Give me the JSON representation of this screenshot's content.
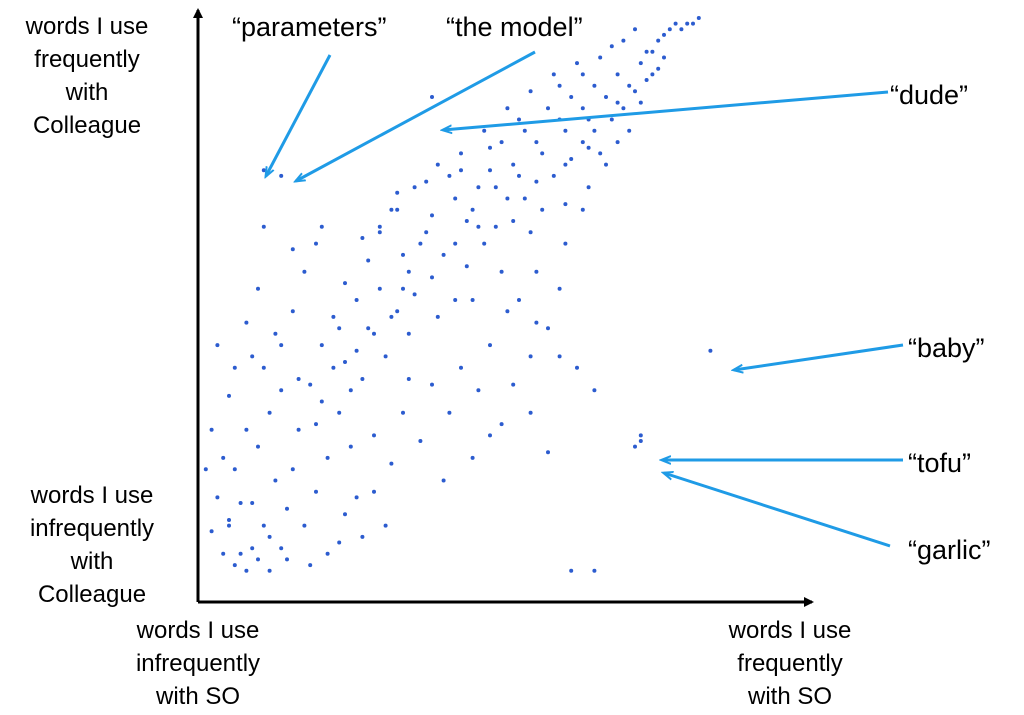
{
  "chart_data": {
    "type": "scatter",
    "title": "",
    "axes": {
      "y_high_label": "words I use\nfrequently\nwith\nColleague",
      "y_low_label": "words I use\ninfrequently\nwith\nColleague",
      "x_low_label": "words I use\ninfrequently\nwith SO",
      "x_high_label": "words I use\nfrequently\nwith SO"
    },
    "xlim": [
      0,
      1
    ],
    "ylim": [
      0,
      1
    ],
    "grid": false,
    "point_color": "#2c5ccf",
    "arrow_color": "#1f9be6",
    "annotations": [
      {
        "text": "“parameters”",
        "x": 0.11,
        "y": 0.73
      },
      {
        "text": "“the model”",
        "x": 0.14,
        "y": 0.72
      },
      {
        "text": "“dude”",
        "x": 0.4,
        "y": 0.86
      },
      {
        "text": "“baby”",
        "x": 0.88,
        "y": 0.41
      },
      {
        "text": "“tofu”",
        "x": 0.76,
        "y": 0.26
      },
      {
        "text": "“garlic”",
        "x": 0.76,
        "y": 0.24
      }
    ],
    "series": [
      {
        "points": [
          [
            0.11,
            0.73
          ],
          [
            0.14,
            0.72
          ],
          [
            0.4,
            0.86
          ],
          [
            0.88,
            0.41
          ],
          [
            0.76,
            0.26
          ],
          [
            0.75,
            0.24
          ],
          [
            0.76,
            0.25
          ],
          [
            0.34,
            0.69
          ],
          [
            0.11,
            0.63
          ],
          [
            0.21,
            0.63
          ],
          [
            0.16,
            0.59
          ],
          [
            0.31,
            0.63
          ],
          [
            0.05,
            0.11
          ],
          [
            0.07,
            0.05
          ],
          [
            0.1,
            0.04
          ],
          [
            0.04,
            0.22
          ],
          [
            0.02,
            0.09
          ],
          [
            0.09,
            0.14
          ],
          [
            0.06,
            0.2
          ],
          [
            0.12,
            0.08
          ],
          [
            0.03,
            0.15
          ],
          [
            0.08,
            0.27
          ],
          [
            0.05,
            0.33
          ],
          [
            0.11,
            0.1
          ],
          [
            0.13,
            0.18
          ],
          [
            0.02,
            0.27
          ],
          [
            0.15,
            0.13
          ],
          [
            0.04,
            0.05
          ],
          [
            0.07,
            0.14
          ],
          [
            0.1,
            0.24
          ],
          [
            0.14,
            0.06
          ],
          [
            0.01,
            0.2
          ],
          [
            0.06,
            0.38
          ],
          [
            0.12,
            0.3
          ],
          [
            0.16,
            0.2
          ],
          [
            0.09,
            0.06
          ],
          [
            0.03,
            0.42
          ],
          [
            0.18,
            0.1
          ],
          [
            0.11,
            0.38
          ],
          [
            0.08,
            0.46
          ],
          [
            0.05,
            0.1
          ],
          [
            0.14,
            0.34
          ],
          [
            0.17,
            0.27
          ],
          [
            0.2,
            0.16
          ],
          [
            0.13,
            0.44
          ],
          [
            0.22,
            0.22
          ],
          [
            0.1,
            0.52
          ],
          [
            0.19,
            0.35
          ],
          [
            0.24,
            0.3
          ],
          [
            0.16,
            0.48
          ],
          [
            0.21,
            0.42
          ],
          [
            0.26,
            0.24
          ],
          [
            0.18,
            0.55
          ],
          [
            0.23,
            0.47
          ],
          [
            0.28,
            0.36
          ],
          [
            0.25,
            0.53
          ],
          [
            0.3,
            0.44
          ],
          [
            0.2,
            0.6
          ],
          [
            0.27,
            0.5
          ],
          [
            0.32,
            0.4
          ],
          [
            0.29,
            0.57
          ],
          [
            0.34,
            0.48
          ],
          [
            0.31,
            0.62
          ],
          [
            0.36,
            0.55
          ],
          [
            0.33,
            0.66
          ],
          [
            0.38,
            0.6
          ],
          [
            0.35,
            0.52
          ],
          [
            0.4,
            0.65
          ],
          [
            0.37,
            0.7
          ],
          [
            0.42,
            0.58
          ],
          [
            0.39,
            0.62
          ],
          [
            0.44,
            0.68
          ],
          [
            0.41,
            0.74
          ],
          [
            0.46,
            0.64
          ],
          [
            0.43,
            0.72
          ],
          [
            0.48,
            0.7
          ],
          [
            0.45,
            0.76
          ],
          [
            0.5,
            0.73
          ],
          [
            0.47,
            0.66
          ],
          [
            0.52,
            0.78
          ],
          [
            0.49,
            0.8
          ],
          [
            0.54,
            0.74
          ],
          [
            0.51,
            0.7
          ],
          [
            0.56,
            0.8
          ],
          [
            0.53,
            0.84
          ],
          [
            0.58,
            0.78
          ],
          [
            0.55,
            0.72
          ],
          [
            0.6,
            0.84
          ],
          [
            0.57,
            0.87
          ],
          [
            0.62,
            0.82
          ],
          [
            0.59,
            0.76
          ],
          [
            0.64,
            0.86
          ],
          [
            0.61,
            0.9
          ],
          [
            0.66,
            0.84
          ],
          [
            0.63,
            0.8
          ],
          [
            0.68,
            0.88
          ],
          [
            0.65,
            0.92
          ],
          [
            0.7,
            0.86
          ],
          [
            0.67,
            0.82
          ],
          [
            0.72,
            0.9
          ],
          [
            0.69,
            0.93
          ],
          [
            0.74,
            0.88
          ],
          [
            0.71,
            0.95
          ],
          [
            0.76,
            0.92
          ],
          [
            0.73,
            0.96
          ],
          [
            0.78,
            0.94
          ],
          [
            0.75,
            0.98
          ],
          [
            0.8,
            0.97
          ],
          [
            0.77,
            0.94
          ],
          [
            0.82,
            0.99
          ],
          [
            0.79,
            0.96
          ],
          [
            0.81,
            0.98
          ],
          [
            0.83,
            0.98
          ],
          [
            0.84,
            0.99
          ],
          [
            0.85,
            0.99
          ],
          [
            0.86,
            1.0
          ],
          [
            0.35,
            0.3
          ],
          [
            0.4,
            0.35
          ],
          [
            0.45,
            0.38
          ],
          [
            0.5,
            0.42
          ],
          [
            0.38,
            0.25
          ],
          [
            0.43,
            0.3
          ],
          [
            0.48,
            0.34
          ],
          [
            0.53,
            0.48
          ],
          [
            0.42,
            0.18
          ],
          [
            0.47,
            0.22
          ],
          [
            0.55,
            0.5
          ],
          [
            0.58,
            0.55
          ],
          [
            0.6,
            0.45
          ],
          [
            0.63,
            0.6
          ],
          [
            0.66,
            0.66
          ],
          [
            0.7,
            0.74
          ],
          [
            0.52,
            0.28
          ],
          [
            0.57,
            0.4
          ],
          [
            0.62,
            0.52
          ],
          [
            0.67,
            0.7
          ],
          [
            0.72,
            0.78
          ],
          [
            0.3,
            0.16
          ],
          [
            0.33,
            0.21
          ],
          [
            0.36,
            0.36
          ],
          [
            0.25,
            0.12
          ],
          [
            0.28,
            0.08
          ],
          [
            0.22,
            0.05
          ],
          [
            0.27,
            0.15
          ],
          [
            0.32,
            0.1
          ],
          [
            0.3,
            0.26
          ],
          [
            0.26,
            0.34
          ],
          [
            0.23,
            0.38
          ],
          [
            0.44,
            0.5
          ],
          [
            0.46,
            0.56
          ],
          [
            0.49,
            0.6
          ],
          [
            0.51,
            0.63
          ],
          [
            0.54,
            0.64
          ],
          [
            0.56,
            0.68
          ],
          [
            0.59,
            0.66
          ],
          [
            0.61,
            0.72
          ],
          [
            0.64,
            0.75
          ],
          [
            0.66,
            0.78
          ],
          [
            0.68,
            0.8
          ],
          [
            0.71,
            0.82
          ],
          [
            0.73,
            0.84
          ],
          [
            0.75,
            0.87
          ],
          [
            0.77,
            0.89
          ],
          [
            0.79,
            0.91
          ],
          [
            0.62,
            0.4
          ],
          [
            0.65,
            0.38
          ],
          [
            0.68,
            0.34
          ],
          [
            0.57,
            0.3
          ],
          [
            0.6,
            0.23
          ],
          [
            0.58,
            0.46
          ],
          [
            0.54,
            0.35
          ],
          [
            0.5,
            0.26
          ],
          [
            0.64,
            0.02
          ],
          [
            0.68,
            0.02
          ],
          [
            0.24,
            0.07
          ],
          [
            0.19,
            0.03
          ],
          [
            0.15,
            0.04
          ],
          [
            0.12,
            0.02
          ],
          [
            0.08,
            0.02
          ],
          [
            0.06,
            0.03
          ],
          [
            0.28,
            0.61
          ],
          [
            0.34,
            0.66
          ],
          [
            0.39,
            0.71
          ],
          [
            0.45,
            0.73
          ],
          [
            0.5,
            0.77
          ],
          [
            0.55,
            0.82
          ],
          [
            0.62,
            0.88
          ],
          [
            0.66,
            0.9
          ],
          [
            0.36,
            0.44
          ],
          [
            0.41,
            0.47
          ],
          [
            0.47,
            0.5
          ],
          [
            0.52,
            0.55
          ],
          [
            0.57,
            0.62
          ],
          [
            0.63,
            0.67
          ],
          [
            0.69,
            0.76
          ],
          [
            0.74,
            0.8
          ],
          [
            0.2,
            0.28
          ],
          [
            0.24,
            0.45
          ],
          [
            0.27,
            0.41
          ],
          [
            0.31,
            0.52
          ],
          [
            0.35,
            0.58
          ],
          [
            0.4,
            0.54
          ],
          [
            0.44,
            0.6
          ],
          [
            0.48,
            0.63
          ],
          [
            0.53,
            0.68
          ],
          [
            0.58,
            0.71
          ],
          [
            0.63,
            0.74
          ],
          [
            0.67,
            0.77
          ],
          [
            0.72,
            0.85
          ],
          [
            0.76,
            0.85
          ],
          [
            0.78,
            0.9
          ],
          [
            0.8,
            0.93
          ],
          [
            0.09,
            0.4
          ],
          [
            0.14,
            0.42
          ],
          [
            0.17,
            0.36
          ],
          [
            0.21,
            0.32
          ],
          [
            0.25,
            0.39
          ],
          [
            0.29,
            0.45
          ],
          [
            0.33,
            0.47
          ],
          [
            0.37,
            0.51
          ]
        ]
      }
    ]
  }
}
